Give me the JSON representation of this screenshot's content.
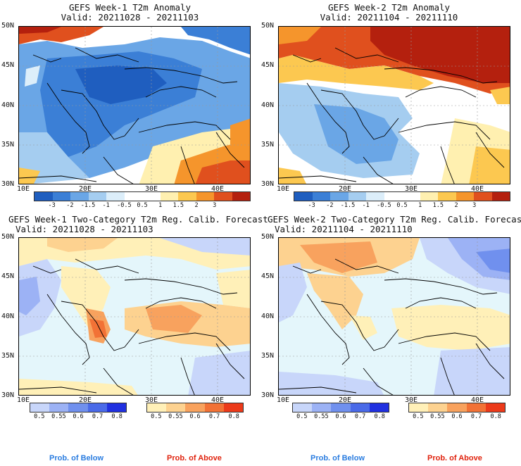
{
  "panels": [
    {
      "title": "GEFS Week-1 T2m Anomaly",
      "valid": "Valid: 20211028 - 20211103"
    },
    {
      "title": "GEFS Week-2 T2m Anomaly",
      "valid": "Valid: 20211104 - 20211110"
    },
    {
      "title": "GEFS Week-1 Two-Category T2m Reg. Calib. Forecast",
      "valid": "Valid: 20211028 - 20211103"
    },
    {
      "title": "GEFS Week-2 Two-Category T2m Reg. Calib. Forecast",
      "valid": "Valid: 20211104 - 20211110"
    }
  ],
  "lat_labels": [
    "50N",
    "45N",
    "40N",
    "35N",
    "30N"
  ],
  "lon_labels": [
    "10E",
    "20E",
    "30E",
    "40E"
  ],
  "anomaly_colorbar": {
    "colors": [
      "#1f5ebf",
      "#3b7fd6",
      "#6aa6e6",
      "#a5cdf0",
      "#dceefa",
      "#ffffff",
      "#ffffff",
      "#fff0b0",
      "#fcc850",
      "#f5952c",
      "#e0501e",
      "#b4200e"
    ],
    "labels": [
      "-3",
      "-2",
      "-1.5",
      "-1",
      "-0.5",
      "0.5",
      "1",
      "1.5",
      "2",
      "3"
    ]
  },
  "below_colorbar": {
    "colors": [
      "#c8d6fa",
      "#9cb2f5",
      "#7090ee",
      "#4a6ae8",
      "#2030e0"
    ],
    "labels": [
      "0.5",
      "0.55",
      "0.6",
      "0.7",
      "0.8"
    ]
  },
  "above_colorbar": {
    "colors": [
      "#fff0b8",
      "#fdd290",
      "#f8a25e",
      "#f27236",
      "#ec3a1a"
    ],
    "labels": [
      "0.5",
      "0.55",
      "0.6",
      "0.7",
      "0.8"
    ]
  },
  "legend": {
    "below": "Prob. of Below",
    "above": "Prob. of Above"
  },
  "colors": {
    "below_label": "#2b7de0",
    "above_label": "#e0230e",
    "sea": "#e4f6fb"
  }
}
